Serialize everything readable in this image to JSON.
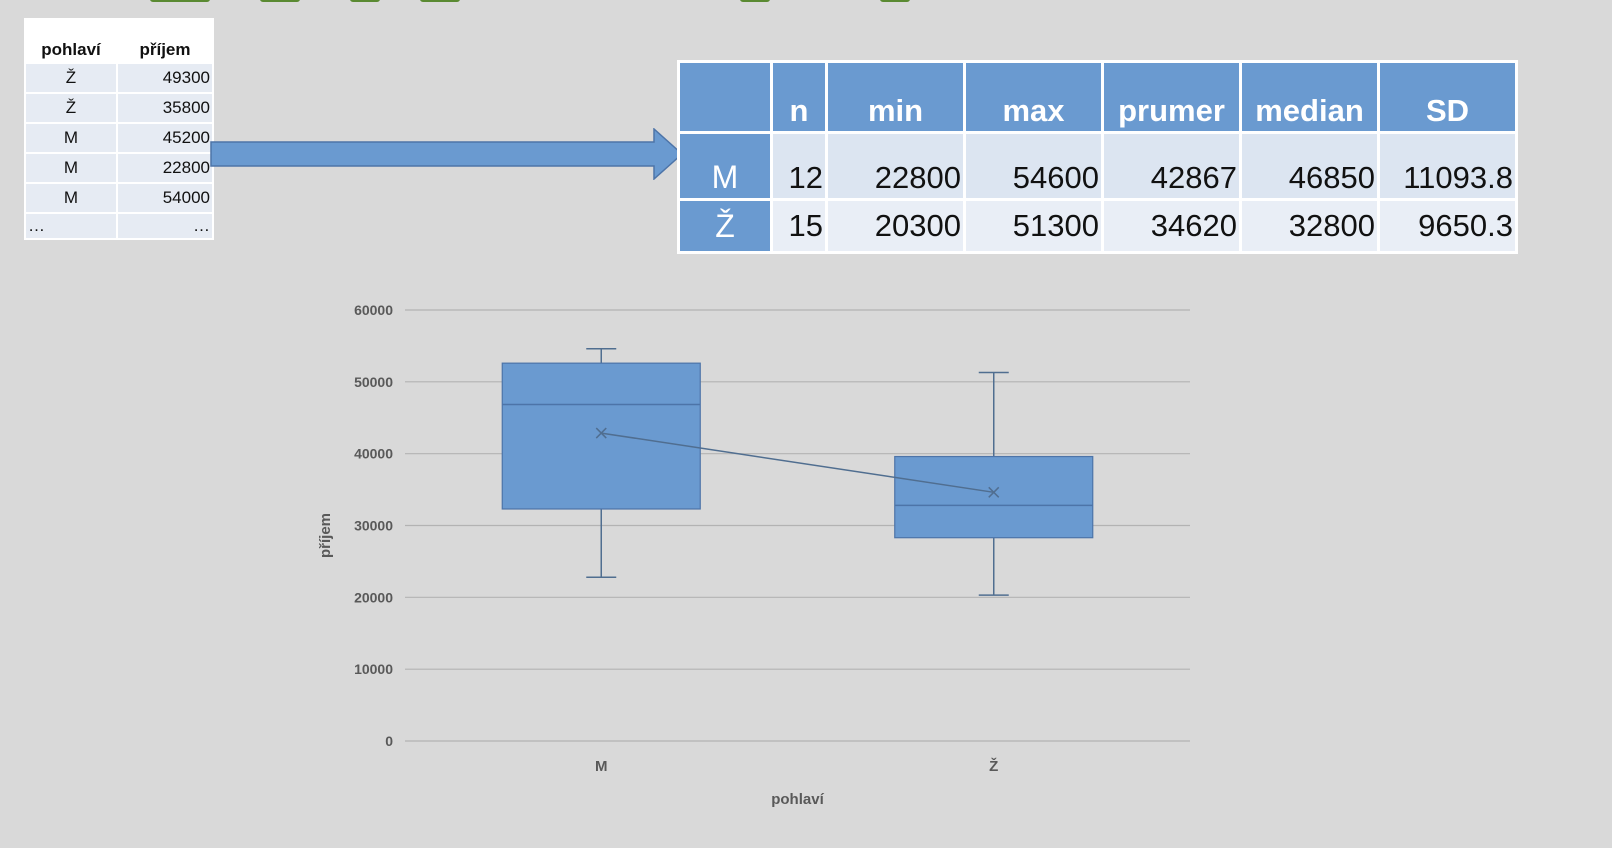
{
  "raw_table": {
    "headers": [
      "pohlaví",
      "příjem"
    ],
    "rows": [
      [
        "Ž",
        "49300"
      ],
      [
        "Ž",
        "35800"
      ],
      [
        "M",
        "45200"
      ],
      [
        "M",
        "22800"
      ],
      [
        "M",
        "54000"
      ],
      [
        "…",
        "…"
      ]
    ]
  },
  "summary_table": {
    "headers": [
      "",
      "n",
      "min",
      "max",
      "prumer",
      "median",
      "SD"
    ],
    "rows": [
      {
        "label": "M",
        "n": "12",
        "min": "22800",
        "max": "54600",
        "prumer": "42867",
        "median": "46850",
        "sd": "11093.8"
      },
      {
        "label": "Ž",
        "n": "15",
        "min": "20300",
        "max": "51300",
        "prumer": "34620",
        "median": "32800",
        "sd": "9650.3"
      }
    ]
  },
  "chart_data": {
    "type": "boxplot",
    "xlabel": "pohlaví",
    "ylabel": "příjem",
    "ylim": [
      0,
      60000
    ],
    "yticks": [
      0,
      10000,
      20000,
      30000,
      40000,
      50000,
      60000
    ],
    "grid": true,
    "categories": [
      "M",
      "Ž"
    ],
    "boxes": [
      {
        "category": "M",
        "min": 22800,
        "q1": 32300,
        "median": 46850,
        "q3": 52600,
        "max": 54600,
        "mean": 42867
      },
      {
        "category": "Ž",
        "min": 20300,
        "q1": 28300,
        "median": 32800,
        "q3": 39600,
        "max": 51300,
        "mean": 34620
      }
    ],
    "mean_line": true,
    "colors": {
      "box": "#6a9ad0",
      "box_edge": "#4d74a8",
      "line": "#506e90",
      "grid": "#b3b3b3",
      "axis_text": "#595959"
    }
  }
}
